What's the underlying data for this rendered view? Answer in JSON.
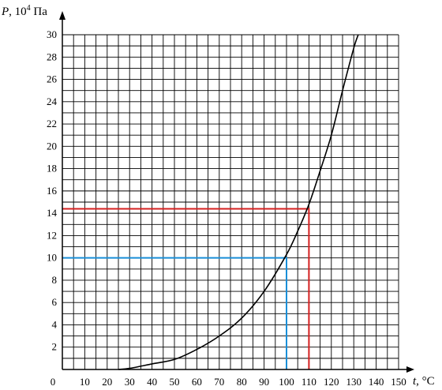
{
  "chart_data": {
    "type": "line",
    "title": "",
    "ylabel": "P, 10",
    "ylabel_exp": "4",
    "ylabel_unit": " Па",
    "xlabel": "t, °C",
    "xlim": [
      0,
      150
    ],
    "ylim": [
      0,
      30
    ],
    "grid": true,
    "x_ticks": [
      0,
      10,
      20,
      30,
      40,
      50,
      60,
      70,
      80,
      90,
      100,
      110,
      120,
      130,
      140,
      150
    ],
    "y_ticks": [
      2,
      4,
      6,
      8,
      10,
      12,
      14,
      16,
      18,
      20,
      22,
      24,
      26,
      28,
      30
    ],
    "series": [
      {
        "x": [
          25,
          30,
          40,
          50,
          60,
          70,
          80,
          90,
          100,
          105,
          110,
          115,
          120,
          125,
          130,
          132
        ],
        "y": [
          0,
          0.1,
          0.5,
          0.9,
          1.8,
          3.0,
          4.6,
          7.0,
          10.3,
          12.4,
          14.8,
          17.8,
          21.0,
          25.0,
          28.8,
          30
        ],
        "color": "#000000"
      }
    ],
    "reference_lines": [
      {
        "y": 10,
        "x": 100,
        "color": "#1a8fd8"
      },
      {
        "y": 14.4,
        "x": 110,
        "color": "#d42020"
      }
    ]
  }
}
